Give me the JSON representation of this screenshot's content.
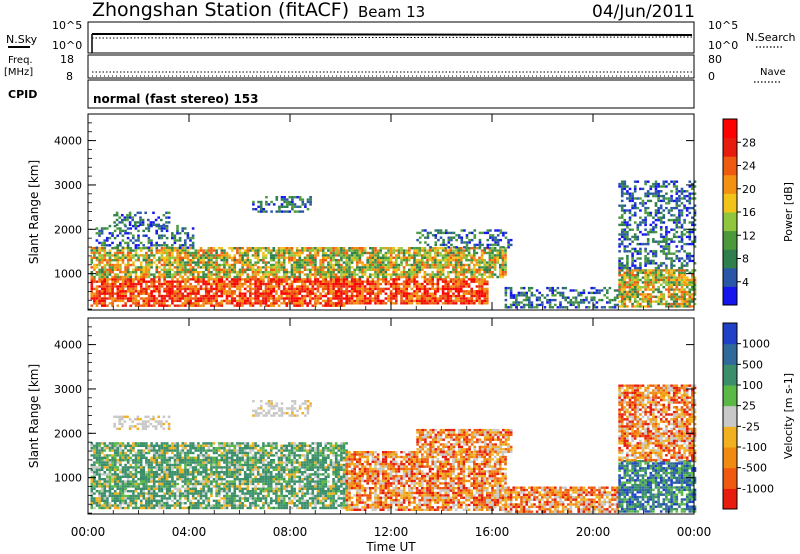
{
  "header": {
    "station_title": "Zhongshan Station (fitACF)",
    "beam_label": "Beam 13",
    "date": "04/Jun/2011"
  },
  "small_panels": {
    "nsky_label": "N.Sky",
    "nsearch_label": "N.Search",
    "freq_label_1": "Freq.",
    "freq_label_2": "[MHz]",
    "nave_label": "Nave",
    "cpid_label": "CPID",
    "cpid_value": "normal (fast stereo) 153",
    "noise_left_ticks": [
      "10^5",
      "10^0"
    ],
    "noise_right_ticks": [
      "10^5",
      "10^0"
    ],
    "freq_left_ticks": [
      "18",
      "8"
    ],
    "nave_right_ticks": [
      "80",
      "0"
    ]
  },
  "x_axis": {
    "label": "Time UT",
    "ticks": [
      "00:00",
      "04:00",
      "08:00",
      "12:00",
      "16:00",
      "20:00",
      "00:00"
    ]
  },
  "chart_data": [
    {
      "type": "heatmap",
      "parameter": "Power",
      "ylabel": "Slant Range [km]",
      "xlabel": "Time UT",
      "xlim_hours": [
        0,
        24
      ],
      "ylim": [
        180,
        4600
      ],
      "ytick_values": [
        1000,
        2000,
        3000,
        4000
      ],
      "ytick_labels": [
        "1000",
        "2000",
        "3000",
        "4000"
      ],
      "colorbar": {
        "label": "Power [dB]",
        "range": [
          0,
          32
        ],
        "tick_labels": [
          "4",
          "8",
          "12",
          "16",
          "20",
          "24",
          "28"
        ],
        "colors": [
          "#1515ee",
          "#2a56a8",
          "#2f7f4d",
          "#4a9a3c",
          "#8fc63d",
          "#f2c41a",
          "#f39212",
          "#ee5a0f",
          "#e81c0c",
          "#ff0000"
        ]
      },
      "echo_regions": [
        {
          "t": [
            0.1,
            10.2
          ],
          "r": [
            300,
            900
          ],
          "level": "high"
        },
        {
          "t": [
            0.1,
            10.2
          ],
          "r": [
            900,
            1600
          ],
          "level": "medium"
        },
        {
          "t": [
            0.3,
            4.2
          ],
          "r": [
            1600,
            2100
          ],
          "level": "low"
        },
        {
          "t": [
            1.0,
            3.2
          ],
          "r": [
            2100,
            2400
          ],
          "level": "low"
        },
        {
          "t": [
            6.5,
            8.8
          ],
          "r": [
            2400,
            2750
          ],
          "level": "low"
        },
        {
          "t": [
            10.2,
            15.8
          ],
          "r": [
            350,
            900
          ],
          "level": "high"
        },
        {
          "t": [
            10.2,
            16.5
          ],
          "r": [
            900,
            1600
          ],
          "level": "medium"
        },
        {
          "t": [
            13.0,
            16.8
          ],
          "r": [
            1600,
            2000
          ],
          "level": "low"
        },
        {
          "t": [
            16.5,
            21.0
          ],
          "r": [
            250,
            700
          ],
          "level": "low"
        },
        {
          "t": [
            21.0,
            24.0
          ],
          "r": [
            250,
            1100
          ],
          "level": "medium"
        },
        {
          "t": [
            21.0,
            24.0
          ],
          "r": [
            1100,
            3100
          ],
          "level": "low"
        }
      ]
    },
    {
      "type": "heatmap",
      "parameter": "Velocity",
      "ylabel": "Slant Range [km]",
      "xlabel": "Time UT",
      "xlim_hours": [
        0,
        24
      ],
      "ylim": [
        180,
        4600
      ],
      "ytick_values": [
        1000,
        2000,
        3000,
        4000
      ],
      "ytick_labels": [
        "1000",
        "2000",
        "3000",
        "4000"
      ],
      "colorbar": {
        "label": "Velocity [m s-1]",
        "tick_labels": [
          "1000",
          "500",
          "100",
          "25",
          "-25",
          "-100",
          "-500",
          "-1000"
        ],
        "colors": [
          "#2040c8",
          "#2f6a9a",
          "#3a8f6a",
          "#5ab845",
          "#c8c8c8",
          "#f0b020",
          "#f08a10",
          "#f05a10",
          "#e81c0c"
        ]
      },
      "echo_regions": [
        {
          "t": [
            0.1,
            10.2
          ],
          "r": [
            300,
            1100
          ],
          "level": "medium"
        },
        {
          "t": [
            0.1,
            10.2
          ],
          "r": [
            1100,
            1800
          ],
          "level": "medium"
        },
        {
          "t": [
            1.0,
            3.2
          ],
          "r": [
            2100,
            2400
          ],
          "level": "neutral"
        },
        {
          "t": [
            6.5,
            8.8
          ],
          "r": [
            2400,
            2750
          ],
          "level": "neutral"
        },
        {
          "t": [
            10.2,
            16.5
          ],
          "r": [
            300,
            1600
          ],
          "level": "negative"
        },
        {
          "t": [
            13.0,
            16.8
          ],
          "r": [
            1600,
            2100
          ],
          "level": "negative"
        },
        {
          "t": [
            16.5,
            21.0
          ],
          "r": [
            250,
            800
          ],
          "level": "negative"
        },
        {
          "t": [
            21.0,
            24.0
          ],
          "r": [
            250,
            1400
          ],
          "level": "positive"
        },
        {
          "t": [
            21.0,
            24.0
          ],
          "r": [
            1400,
            3100
          ],
          "level": "negative"
        }
      ]
    }
  ],
  "palette": {
    "frame": "#000000",
    "background": "#ffffff"
  }
}
